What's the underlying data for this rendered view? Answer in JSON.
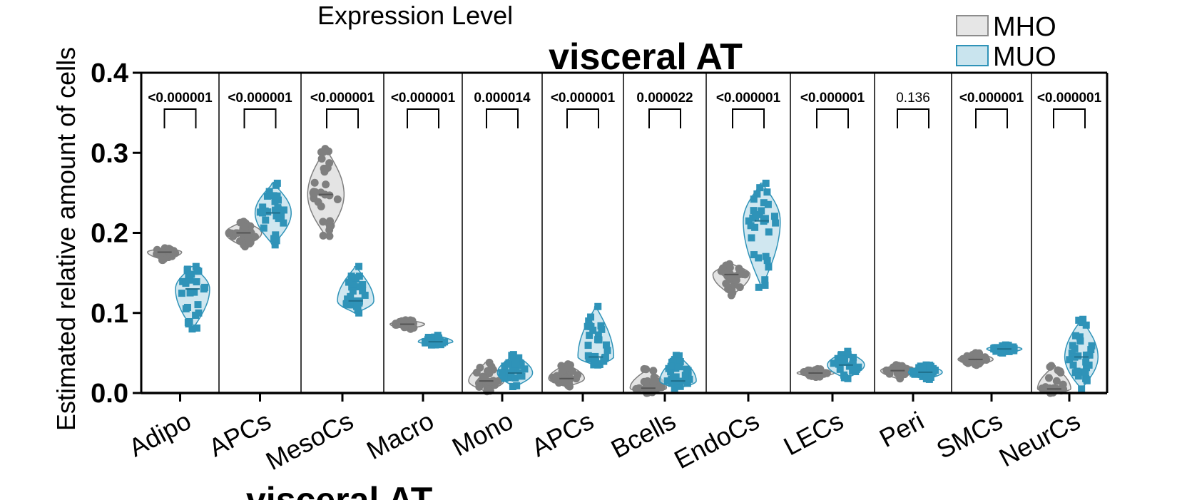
{
  "header": {
    "top_label": "Expression Level",
    "bottom_label": "visceral AT"
  },
  "colors": {
    "mho_fill": "#d9d9d9",
    "mho_point": "#7f7f7f",
    "muo_fill": "#bcdde9",
    "muo_point": "#2f93b8"
  },
  "chart_data": {
    "type": "violin",
    "title": "visceral AT",
    "xlabel": "",
    "ylabel": "Estimated relative amount of cells",
    "ylim": [
      0,
      0.4
    ],
    "yticks": [
      "0.0",
      "0.1",
      "0.2",
      "0.3",
      "0.4"
    ],
    "legend": {
      "placement": "top-right",
      "entries": [
        "MHO",
        "MUO"
      ]
    },
    "categories": [
      "Adipo",
      "APCs",
      "MesoCs",
      "Macro",
      "Mono",
      "APCs",
      "Bcells",
      "EndoCs",
      "LECs",
      "Peri",
      "SMCs",
      "NeurCs"
    ],
    "p_values": [
      "<0.000001",
      "<0.000001",
      "<0.000001",
      "<0.000001",
      "0.000014",
      "<0.000001",
      "0.000022",
      "<0.000001",
      "<0.000001",
      "0.136",
      "<0.000001",
      "<0.000001"
    ],
    "p_bold": [
      true,
      true,
      true,
      true,
      true,
      true,
      true,
      true,
      true,
      false,
      true,
      true
    ],
    "series": [
      {
        "name": "MHO",
        "min": [
          0.166,
          0.183,
          0.196,
          0.08,
          0.002,
          0.008,
          0.0,
          0.122,
          0.02,
          0.018,
          0.035,
          0.0
        ],
        "median": [
          0.176,
          0.2,
          0.248,
          0.086,
          0.015,
          0.018,
          0.006,
          0.148,
          0.025,
          0.028,
          0.042,
          0.005
        ],
        "max": [
          0.181,
          0.214,
          0.305,
          0.091,
          0.038,
          0.036,
          0.03,
          0.161,
          0.03,
          0.035,
          0.05,
          0.034
        ]
      },
      {
        "name": "MUO",
        "min": [
          0.08,
          0.185,
          0.1,
          0.06,
          0.008,
          0.035,
          0.006,
          0.132,
          0.018,
          0.017,
          0.05,
          0.005
        ],
        "median": [
          0.13,
          0.225,
          0.115,
          0.064,
          0.025,
          0.045,
          0.015,
          0.215,
          0.035,
          0.026,
          0.055,
          0.045
        ],
        "max": [
          0.158,
          0.262,
          0.158,
          0.072,
          0.048,
          0.108,
          0.047,
          0.262,
          0.052,
          0.035,
          0.06,
          0.092
        ]
      }
    ]
  }
}
